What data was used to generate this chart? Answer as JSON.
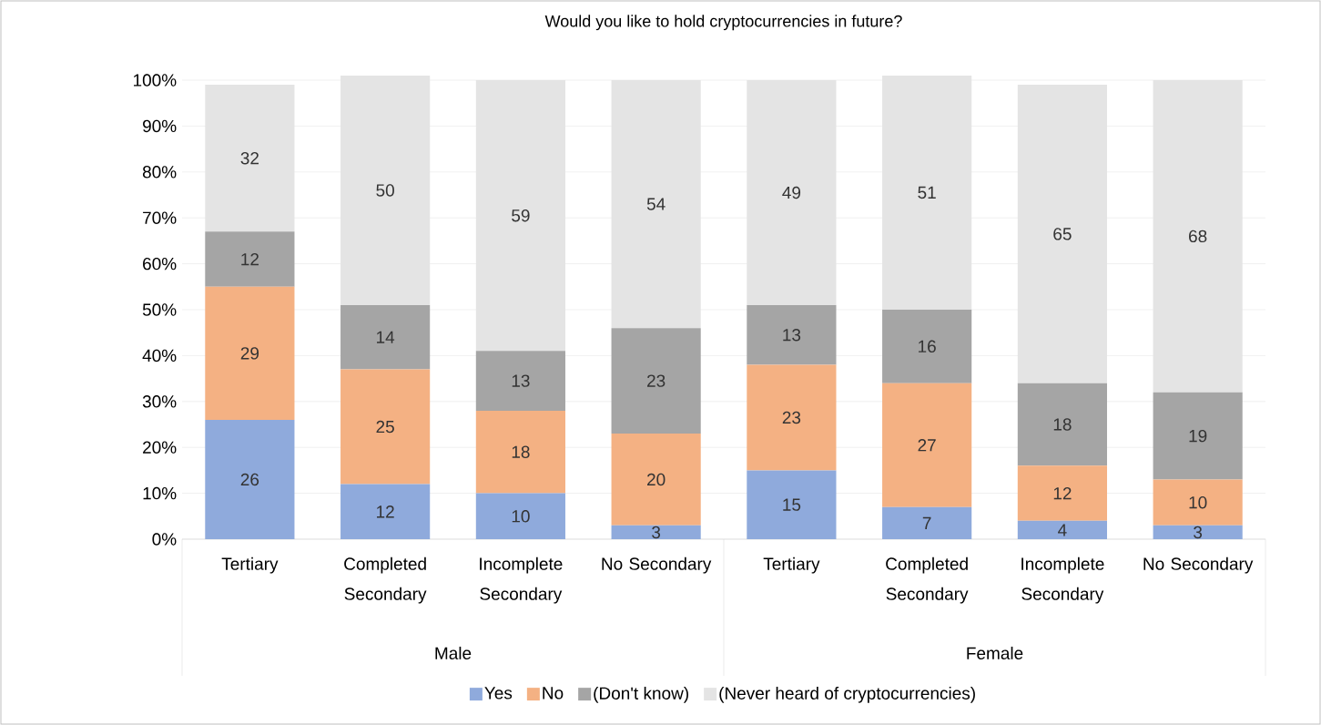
{
  "chart_data": {
    "type": "bar",
    "stacked": true,
    "title": "Would you like to hold cryptocurrencies in future?",
    "categories": [
      "Tertiary",
      "Completed Secondary",
      "Incomplete Secondary",
      "No Secondary",
      "Tertiary",
      "Completed Secondary",
      "Incomplete Secondary",
      "No Secondary"
    ],
    "series": [
      {
        "name": "Yes",
        "color": "#8faadc",
        "values": [
          26,
          12,
          10,
          3,
          15,
          7,
          4,
          3
        ]
      },
      {
        "name": "No",
        "color": "#f4b183",
        "values": [
          29,
          25,
          18,
          20,
          23,
          27,
          12,
          10
        ]
      },
      {
        "name": "(Don't know)",
        "color": "#a5a5a5",
        "values": [
          12,
          14,
          13,
          23,
          13,
          16,
          18,
          19
        ]
      },
      {
        "name": "(Never heard of cryptocurrencies)",
        "color": "#e4e4e4",
        "values": [
          32,
          50,
          59,
          54,
          49,
          51,
          65,
          68
        ]
      }
    ],
    "annotations": [
      "Male",
      "Female"
    ],
    "ylim": [
      0,
      101
    ],
    "yticks": [
      {
        "value": 0,
        "label": "0%"
      },
      {
        "value": 10,
        "label": "10%"
      },
      {
        "value": 20,
        "label": "20%"
      },
      {
        "value": 30,
        "label": "30%"
      },
      {
        "value": 40,
        "label": "40%"
      },
      {
        "value": 50,
        "label": "50%"
      },
      {
        "value": 60,
        "label": "60%"
      },
      {
        "value": 70,
        "label": "70%"
      },
      {
        "value": 80,
        "label": "80%"
      },
      {
        "value": 90,
        "label": "90%"
      },
      {
        "value": 100,
        "label": "100%"
      }
    ],
    "grid": "y",
    "legend": "bottom",
    "data_labels": true
  }
}
